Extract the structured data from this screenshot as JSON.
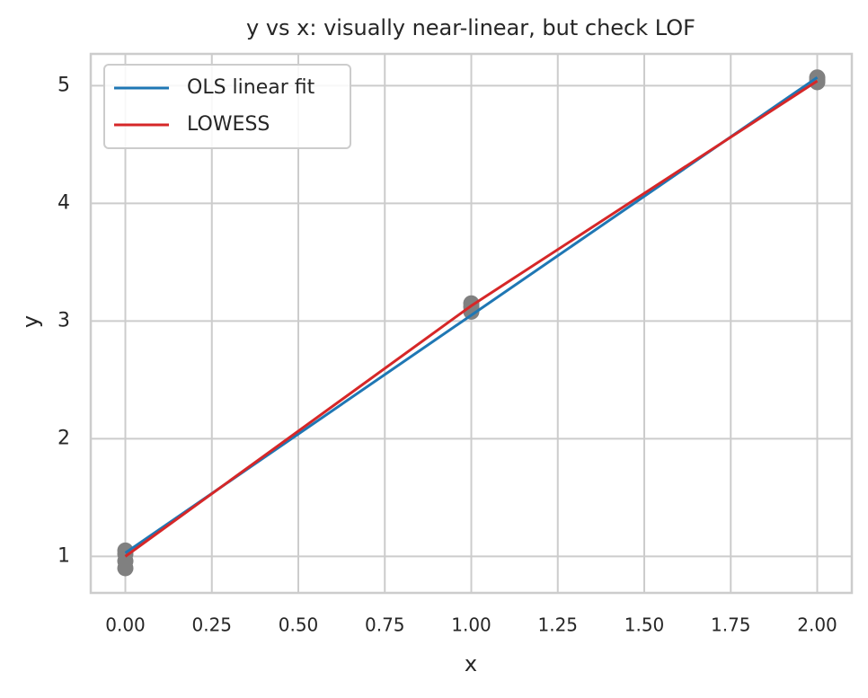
{
  "chart_data": {
    "type": "scatter",
    "title": "y vs x: visually near-linear, but check LOF",
    "x_label": "x",
    "y_label": "y",
    "points": {
      "color": "#808080",
      "x": [
        0,
        0,
        0,
        0,
        1,
        1,
        1,
        2,
        2,
        2
      ],
      "values": [
        1.05,
        1.02,
        0.96,
        0.9,
        3.15,
        3.12,
        3.08,
        5.07,
        5.05,
        5.03
      ]
    },
    "series": [
      {
        "name": "OLS linear fit",
        "color": "#1f77b4",
        "x": [
          0,
          1,
          2
        ],
        "values": [
          1.03,
          3.05,
          5.07
        ]
      },
      {
        "name": "LOWESS",
        "color": "#d62728",
        "x": [
          0,
          1,
          2
        ],
        "values": [
          1.0,
          3.13,
          5.04
        ]
      }
    ],
    "xlim": [
      -0.1,
      2.1
    ],
    "ylim": [
      0.69,
      5.27
    ],
    "xticks": [
      {
        "value": 0,
        "label": "0.00"
      },
      {
        "value": 0.25,
        "label": "0.25"
      },
      {
        "value": 0.5,
        "label": "0.50"
      },
      {
        "value": 0.75,
        "label": "0.75"
      },
      {
        "value": 1,
        "label": "1.00"
      },
      {
        "value": 1.25,
        "label": "1.25"
      },
      {
        "value": 1.5,
        "label": "1.50"
      },
      {
        "value": 1.75,
        "label": "1.75"
      },
      {
        "value": 2,
        "label": "2.00"
      }
    ],
    "yticks": [
      1,
      2,
      3,
      4,
      5
    ],
    "grid": true,
    "legend": "upper left"
  }
}
